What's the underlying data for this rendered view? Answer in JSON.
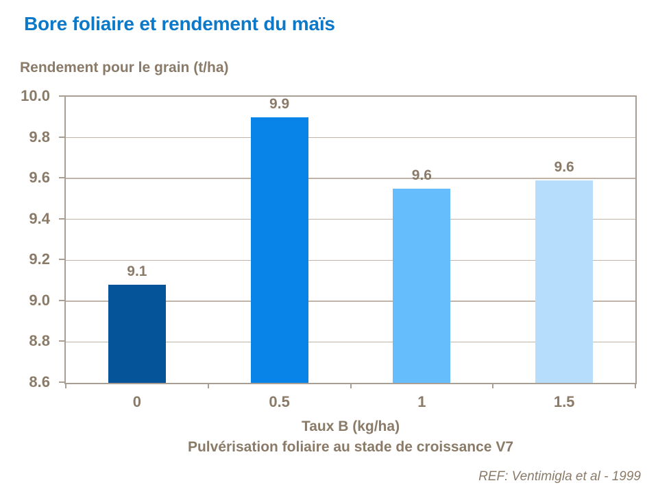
{
  "slide": {
    "title": "Bore foliaire et rendement du maïs",
    "reference": "REF: Ventimigla et al - 1999"
  },
  "chart_data": {
    "type": "bar",
    "title": "Bore foliaire et rendement du maïs",
    "ylabel": "Rendement pour le grain (t/ha)",
    "xlabel": "Taux B (kg/ha)",
    "xlabel2": "Pulvérisation foliaire au stade de croissance V7",
    "categories": [
      "0",
      "0.5",
      "1",
      "1.5"
    ],
    "values": [
      9.08,
      9.9,
      9.55,
      9.59
    ],
    "bar_labels": [
      "9.1",
      "9.9",
      "9.6",
      "9.6"
    ],
    "bar_colors": [
      "#05549a",
      "#0883e8",
      "#66bdfc",
      "#b6defc"
    ],
    "ylim": [
      8.6,
      10.0
    ],
    "yticks": [
      8.6,
      8.8,
      9.0,
      9.2,
      9.4,
      9.6,
      9.8,
      10.0
    ],
    "ytick_labels": [
      "8.6",
      "8.8",
      "9.0",
      "9.2",
      "9.4",
      "9.6",
      "9.8",
      "10.0"
    ],
    "grid": true,
    "legend": "none",
    "annotations": [
      "REF: Ventimigla et al - 1999"
    ]
  },
  "colors": {
    "title_blue": "#0b78c8",
    "axis_text_brown": "#8a7a68",
    "gridline": "#c0b4a8",
    "axis_line": "#a89e94",
    "background": "#ffffff"
  }
}
